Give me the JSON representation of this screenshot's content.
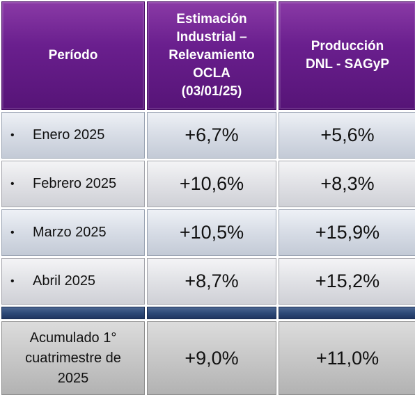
{
  "header": {
    "period": "Período",
    "col1_lines": [
      "Estimación",
      "Industrial –",
      "Relevamiento",
      "OCLA",
      "(03/01/25)"
    ],
    "col2_lines": [
      "Producción",
      "DNL - SAGyP"
    ]
  },
  "bullet": "•",
  "rows": [
    {
      "period": "Enero 2025",
      "estimacion": "+6,7%",
      "produccion": "+5,6%"
    },
    {
      "period": "Febrero 2025",
      "estimacion": "+10,6%",
      "produccion": "+8,3%"
    },
    {
      "period": "Marzo 2025",
      "estimacion": "+10,5%",
      "produccion": "+15,9%"
    },
    {
      "period": "Abril 2025",
      "estimacion": "+8,7%",
      "produccion": "+15,2%"
    }
  ],
  "total": {
    "label_lines": [
      "Acumulado 1°",
      "cuatrimestre de",
      "2025"
    ],
    "estimacion": "+9,0%",
    "produccion": "+11,0%"
  }
}
